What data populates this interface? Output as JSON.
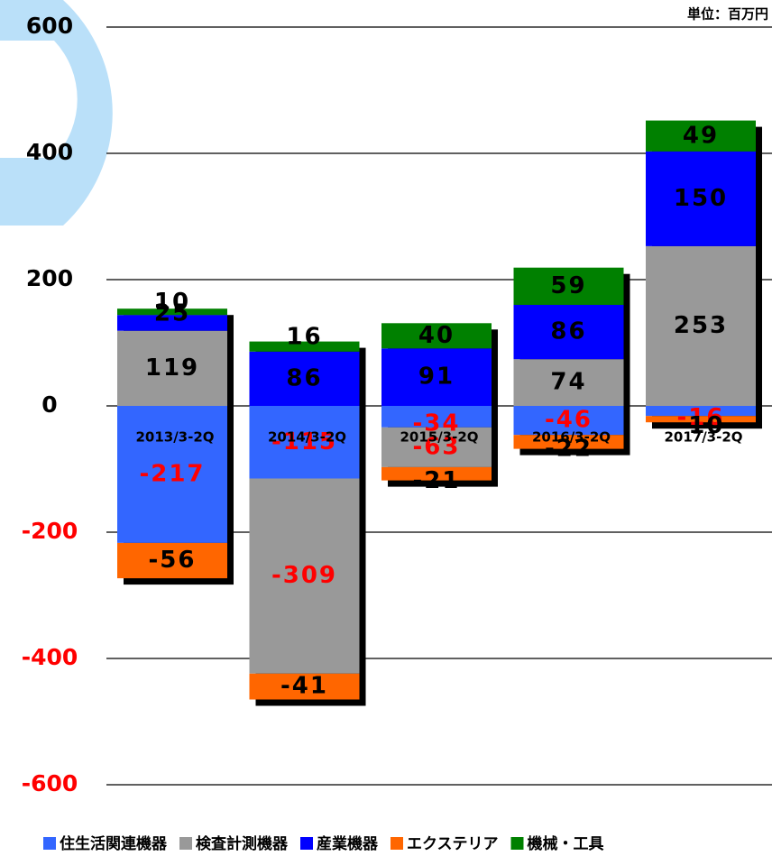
{
  "chart_data": {
    "type": "stacked_bar",
    "unit_label": "単位：百万円",
    "categories": [
      "2013/3-2Q",
      "2014/3-2Q",
      "2015/3-2Q",
      "2016/3-2Q",
      "2017/3-2Q"
    ],
    "series": [
      {
        "name": "住生活関連機器",
        "color": "#3366ff",
        "values": [
          -217,
          -115,
          -34,
          -46,
          -16
        ]
      },
      {
        "name": "検査計測機器",
        "color": "#999999",
        "values": [
          119,
          -309,
          -63,
          74,
          253
        ]
      },
      {
        "name": "産業機器",
        "color": "#0000ff",
        "values": [
          25,
          86,
          91,
          86,
          150
        ]
      },
      {
        "name": "エクステリア",
        "color": "#ff6600",
        "values": [
          -56,
          -41,
          -21,
          -22,
          -10
        ]
      },
      {
        "name": "機械・工具",
        "color": "#008000",
        "values": [
          10,
          16,
          40,
          59,
          49
        ]
      }
    ],
    "ylim": [
      -600,
      600
    ],
    "yticks": [
      -600,
      -400,
      -200,
      0,
      200,
      400,
      600
    ],
    "grid": true
  }
}
